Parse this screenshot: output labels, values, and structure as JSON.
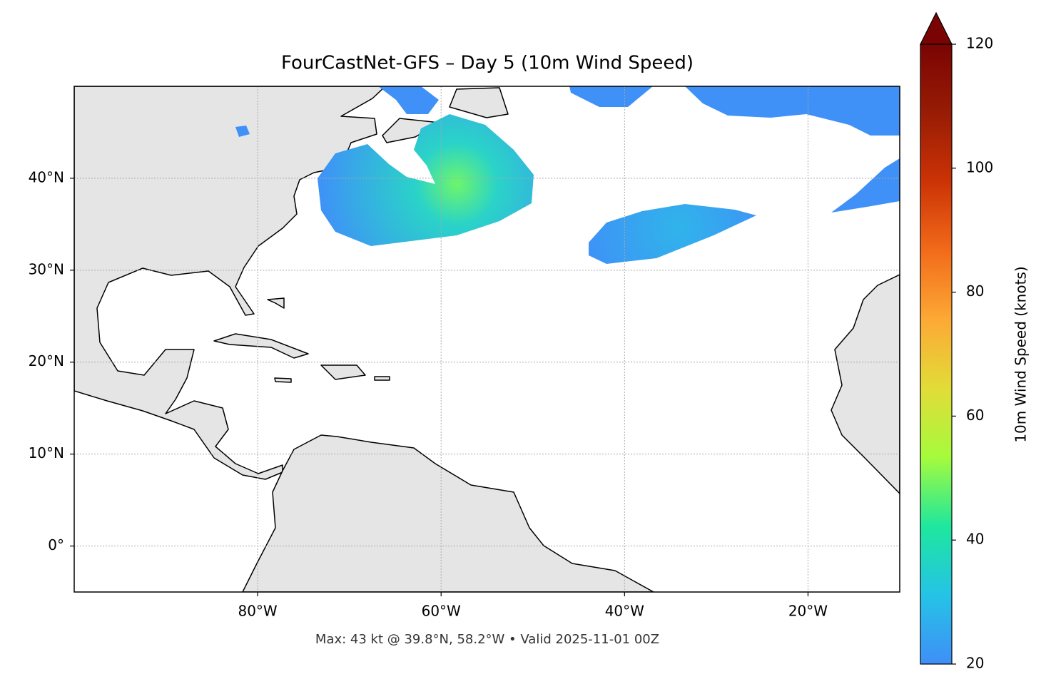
{
  "chart_data": {
    "type": "map",
    "title": "FourCastNet-GFS – Day 5 (10m Wind Speed)",
    "annotation": "Max: 43 kt @ 39.8°N, 58.2°W • Valid 2025-11-01 00Z",
    "xlim": [
      -100,
      -10
    ],
    "ylim": [
      -5,
      50
    ],
    "xticks": [
      {
        "value": -80,
        "label": "80°W"
      },
      {
        "value": -60,
        "label": "60°W"
      },
      {
        "value": -40,
        "label": "40°W"
      },
      {
        "value": -20,
        "label": "20°W"
      }
    ],
    "yticks": [
      {
        "value": 0,
        "label": "0°"
      },
      {
        "value": 10,
        "label": "10°N"
      },
      {
        "value": 20,
        "label": "20°N"
      },
      {
        "value": 30,
        "label": "30°N"
      },
      {
        "value": 40,
        "label": "40°N"
      }
    ],
    "grid": true,
    "colorbar": {
      "label": "10m Wind Speed (knots)",
      "lim": [
        20,
        120
      ],
      "ticks": [
        20,
        40,
        60,
        80,
        100,
        120
      ],
      "extend": "max",
      "colors": [
        "#3f8ff7",
        "#25c3e6",
        "#1ee79e",
        "#a5fb3c",
        "#e2dc38",
        "#fca935",
        "#f26b1a",
        "#cc3306",
        "#981c04",
        "#7a0403"
      ]
    }
  }
}
